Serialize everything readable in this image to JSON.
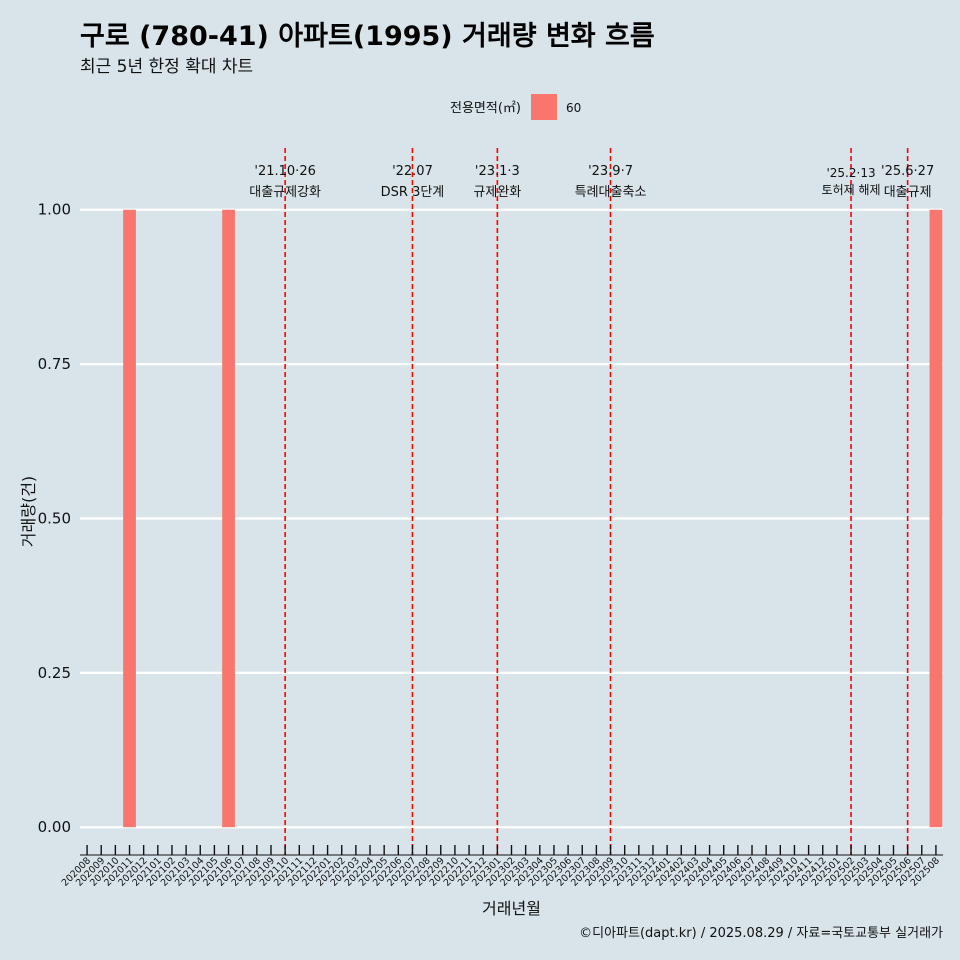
{
  "title": "구로 (780-41) 아파트(1995) 거래량 변화 흐름",
  "subtitle": "최근 5년 한정 확대 차트",
  "caption": "©디아파트(dapt.kr) / 2025.08.29 / 자료=국토교통부 실거래가",
  "colors": {
    "background": "#d8e4ea",
    "bar": "#f8766d",
    "event_line": "#ff0000",
    "grid": "#ffffff"
  },
  "chart_data": {
    "type": "bar",
    "xlabel": "거래년월",
    "ylabel": "거래량(건)",
    "ylim": [
      -0.045,
      1.1
    ],
    "y_ticks": [
      "0.00",
      "0.25",
      "0.50",
      "0.75",
      "1.00"
    ],
    "legend": {
      "title": "전용면적(㎡)",
      "position": "top",
      "entries": [
        "60"
      ]
    },
    "categories": [
      "202008",
      "202009",
      "202010",
      "202011",
      "202012",
      "202101",
      "202102",
      "202103",
      "202104",
      "202105",
      "202106",
      "202107",
      "202108",
      "202109",
      "202110",
      "202111",
      "202112",
      "202201",
      "202202",
      "202203",
      "202204",
      "202205",
      "202206",
      "202207",
      "202208",
      "202209",
      "202210",
      "202211",
      "202212",
      "202301",
      "202302",
      "202303",
      "202304",
      "202305",
      "202306",
      "202307",
      "202308",
      "202309",
      "202310",
      "202311",
      "202312",
      "202401",
      "202402",
      "202403",
      "202404",
      "202405",
      "202406",
      "202407",
      "202408",
      "202409",
      "202410",
      "202411",
      "202412",
      "202501",
      "202502",
      "202503",
      "202504",
      "202505",
      "202506",
      "202507",
      "202508"
    ],
    "series": [
      {
        "name": "60",
        "bars": [
          {
            "x": "202011",
            "value": 1
          },
          {
            "x": "202106",
            "value": 1
          },
          {
            "x": "202508",
            "value": 1
          }
        ]
      }
    ],
    "events": [
      {
        "x": 14.5,
        "date": "'21.10·26",
        "label": "대출규제강화"
      },
      {
        "x": 23.5,
        "date": "'22.07",
        "label": "DSR 3단계"
      },
      {
        "x": 29.5,
        "date": "'23.1·3",
        "label": "규제완화"
      },
      {
        "x": 37.5,
        "date": "'23.9·7",
        "label": "특례대출축소"
      },
      {
        "x": 54.5,
        "date": "'25.2·13",
        "label": "토허제 해제"
      },
      {
        "x": 58.5,
        "date": "'25.6·27",
        "label": "대출규제"
      }
    ]
  }
}
